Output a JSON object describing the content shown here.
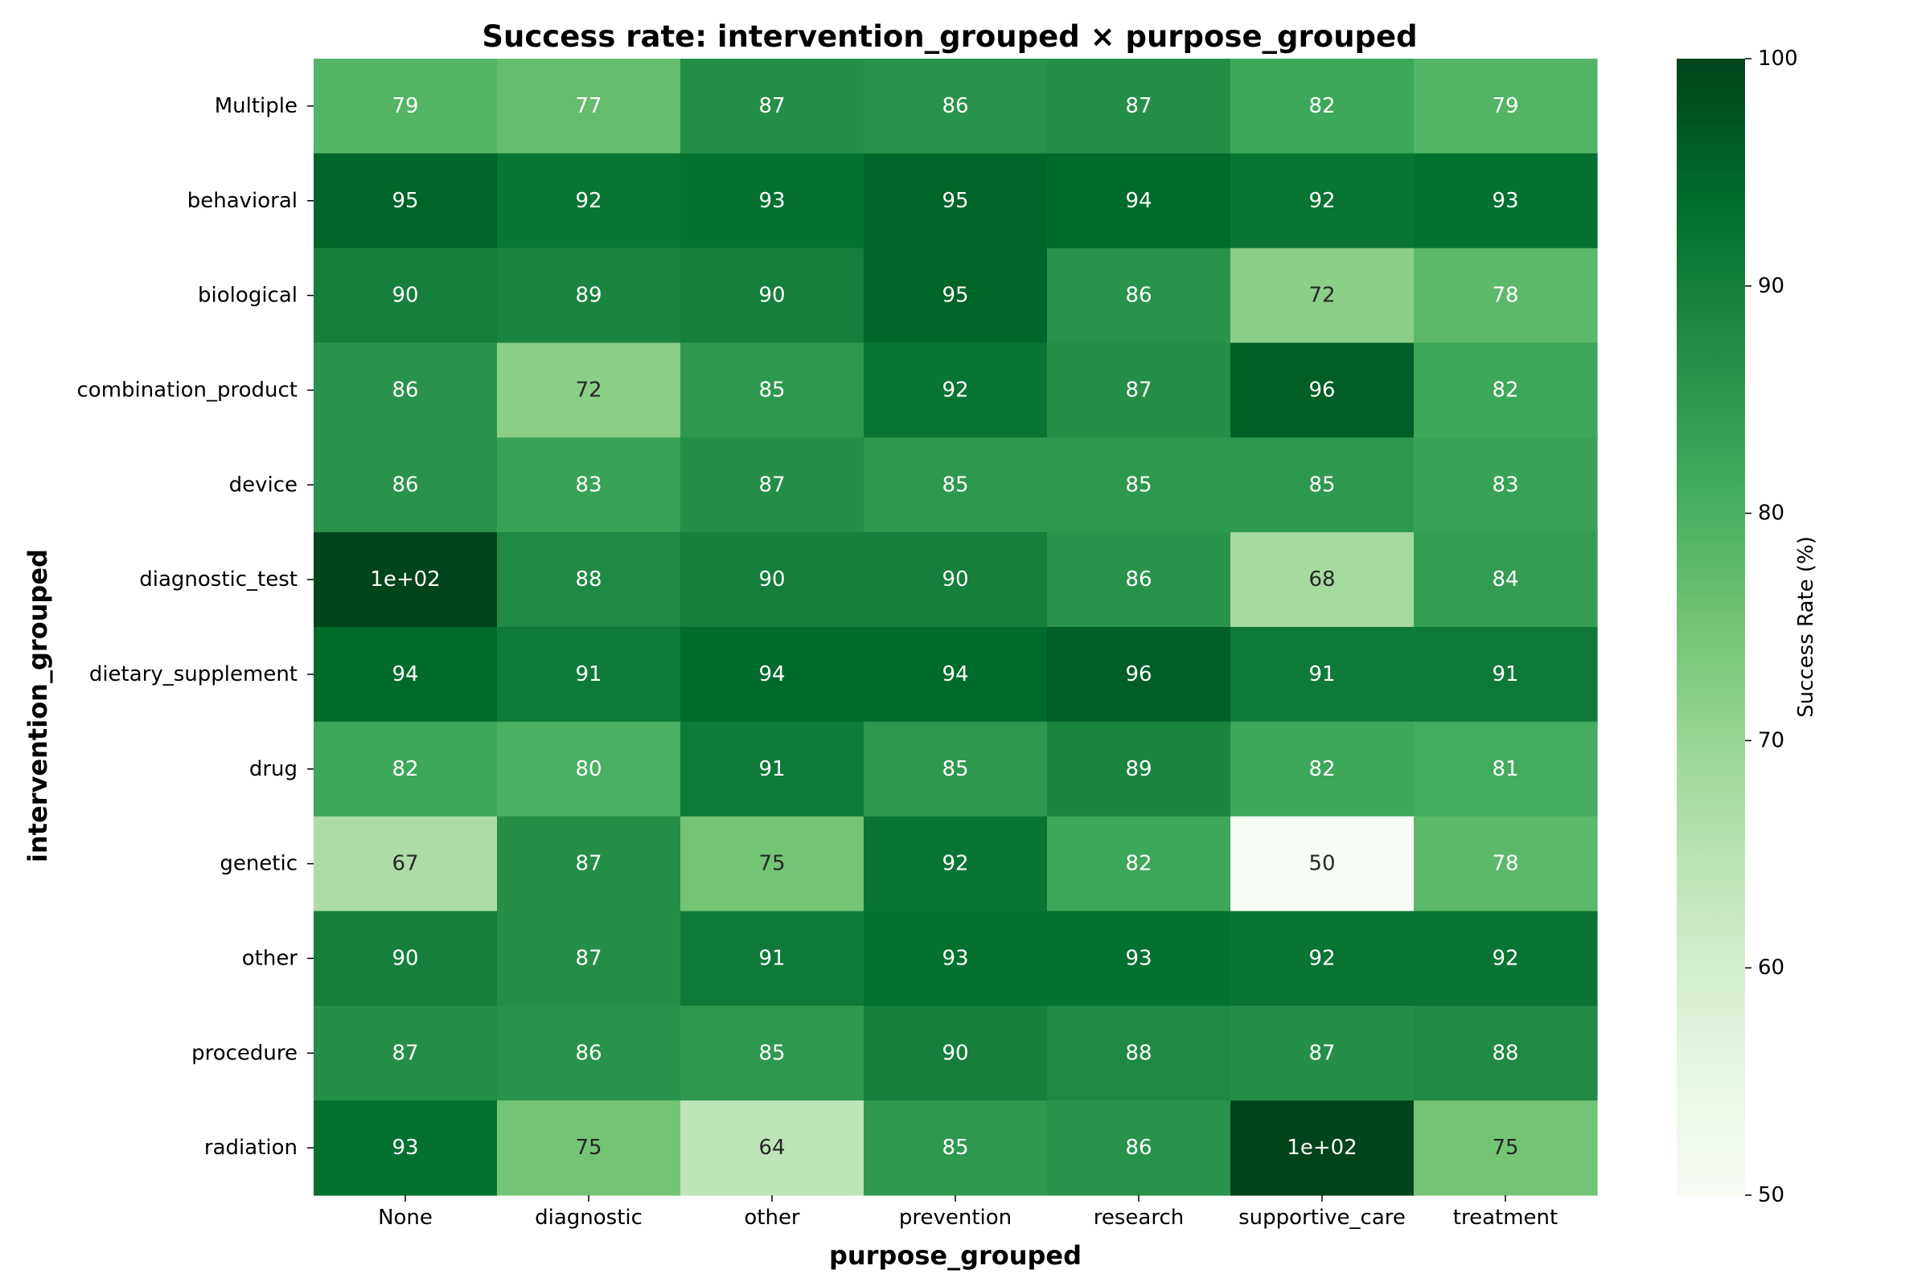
{
  "chart_data": {
    "type": "heatmap",
    "title": "Success rate: intervention_grouped × purpose_grouped",
    "xlabel": "purpose_grouped",
    "ylabel": "intervention_grouped",
    "x_categories": [
      "None",
      "diagnostic",
      "other",
      "prevention",
      "research",
      "supportive_care",
      "treatment"
    ],
    "y_categories": [
      "Multiple",
      "behavioral",
      "biological",
      "combination_product",
      "device",
      "diagnostic_test",
      "dietary_supplement",
      "drug",
      "genetic",
      "other",
      "procedure",
      "radiation"
    ],
    "values": [
      [
        79,
        77,
        87,
        86,
        87,
        82,
        79
      ],
      [
        95,
        92,
        93,
        95,
        94,
        92,
        93
      ],
      [
        90,
        89,
        90,
        95,
        86,
        72,
        78
      ],
      [
        86,
        72,
        85,
        92,
        87,
        96,
        82
      ],
      [
        86,
        83,
        87,
        85,
        85,
        85,
        83
      ],
      [
        100,
        88,
        90,
        90,
        86,
        68,
        84
      ],
      [
        94,
        91,
        94,
        94,
        96,
        91,
        91
      ],
      [
        82,
        80,
        91,
        85,
        89,
        82,
        81
      ],
      [
        67,
        87,
        75,
        92,
        82,
        50,
        78
      ],
      [
        90,
        87,
        91,
        93,
        93,
        92,
        92
      ],
      [
        87,
        86,
        85,
        90,
        88,
        87,
        88
      ],
      [
        93,
        75,
        64,
        85,
        86,
        100,
        75
      ]
    ],
    "annotations": [
      [
        "79",
        "77",
        "87",
        "86",
        "87",
        "82",
        "79"
      ],
      [
        "95",
        "92",
        "93",
        "95",
        "94",
        "92",
        "93"
      ],
      [
        "90",
        "89",
        "90",
        "95",
        "86",
        "72",
        "78"
      ],
      [
        "86",
        "72",
        "85",
        "92",
        "87",
        "96",
        "82"
      ],
      [
        "86",
        "83",
        "87",
        "85",
        "85",
        "85",
        "83"
      ],
      [
        "1e+02",
        "88",
        "90",
        "90",
        "86",
        "68",
        "84"
      ],
      [
        "94",
        "91",
        "94",
        "94",
        "96",
        "91",
        "91"
      ],
      [
        "82",
        "80",
        "91",
        "85",
        "89",
        "82",
        "81"
      ],
      [
        "67",
        "87",
        "75",
        "92",
        "82",
        "50",
        "78"
      ],
      [
        "90",
        "87",
        "91",
        "93",
        "93",
        "92",
        "92"
      ],
      [
        "87",
        "86",
        "85",
        "90",
        "88",
        "87",
        "88"
      ],
      [
        "93",
        "75",
        "64",
        "85",
        "86",
        "1e+02",
        "75"
      ]
    ],
    "colorbar": {
      "label": "Success Rate (%)",
      "range": [
        50,
        100
      ],
      "ticks": [
        50,
        60,
        70,
        80,
        90,
        100
      ]
    },
    "colormap": "Greens",
    "grid": false
  }
}
